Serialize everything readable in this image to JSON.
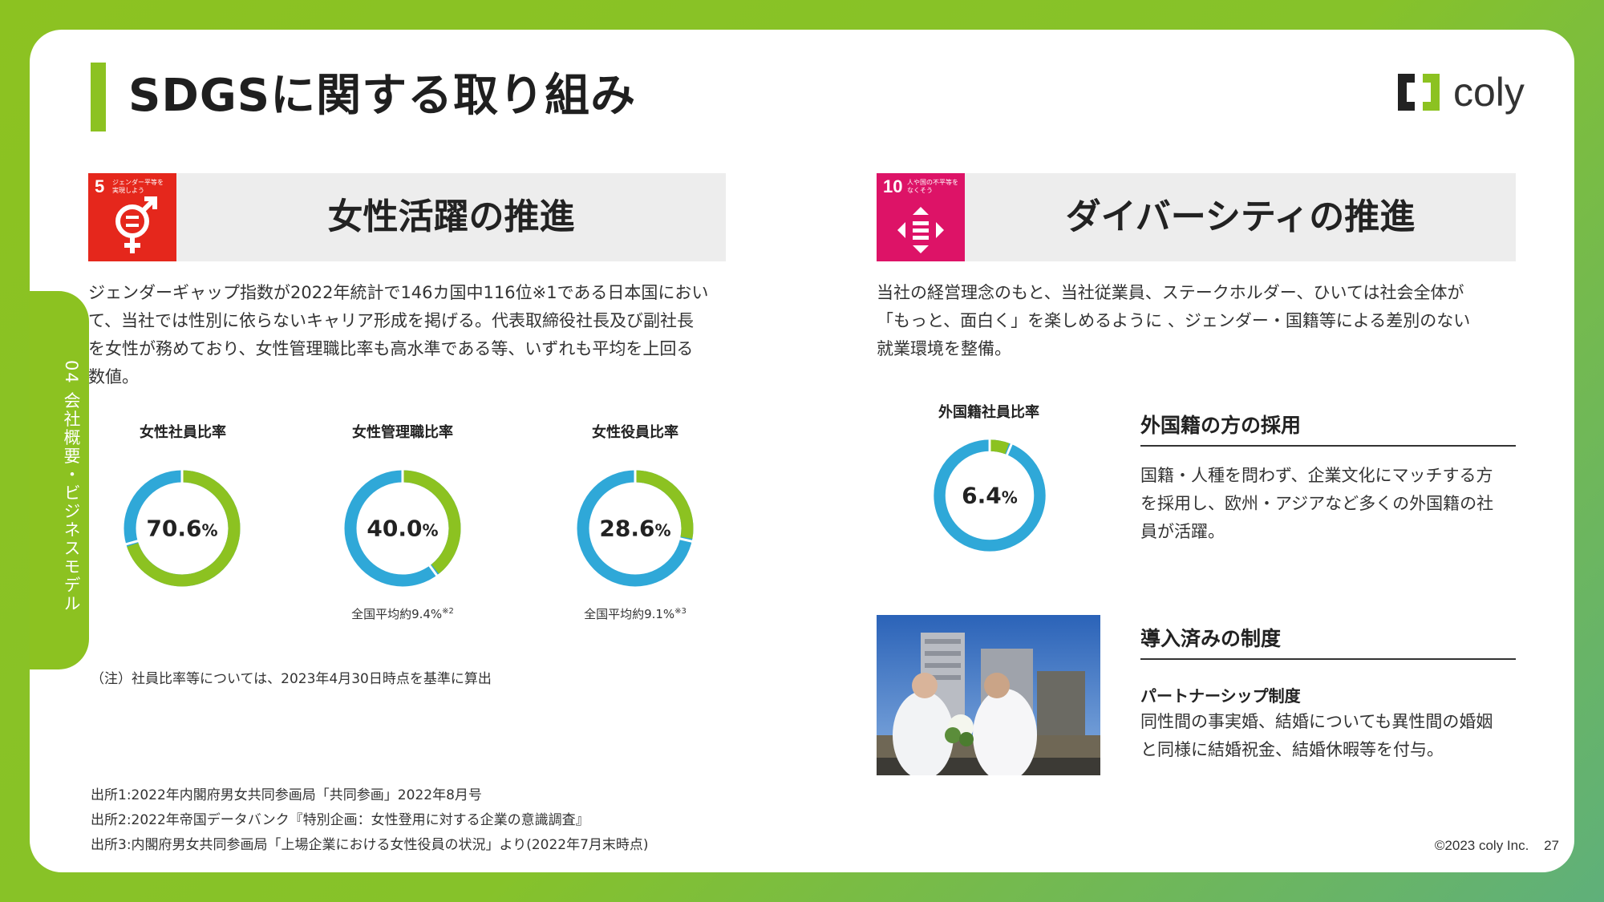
{
  "page": {
    "title": "SDGSに関する取り組み",
    "side_tab": "04 会社概要・ビジネスモデル",
    "logo_text": "coly",
    "footer": "©2023 coly Inc.",
    "page_number": "27"
  },
  "left": {
    "sdg_number": "5",
    "sdg_caption": "ジェンダー平等を実現しよう",
    "sdg_color": "#e5271c",
    "title": "女性活躍の推進",
    "body_lines": [
      "ジェンダーギャップ指数が2022年統計で146カ国中116位※1である日本国におい",
      "て、当社では性別に依らないキャリア形成を掲げる。代表取締役社長及び副社長",
      "を女性が務めており、女性管理職比率も高水準である等、いずれも平均を上回る",
      "数値。"
    ],
    "stats": [
      {
        "label": "女性社員比率",
        "value": "70.6",
        "unit": "%",
        "ratio": 0.706,
        "note": "",
        "note_sup": ""
      },
      {
        "label": "女性管理職比率",
        "value": "40.0",
        "unit": "%",
        "ratio": 0.4,
        "note": "全国平均約9.4%",
        "note_sup": "※2"
      },
      {
        "label": "女性役員比率",
        "value": "28.6",
        "unit": "%",
        "ratio": 0.286,
        "note": "全国平均約9.1%",
        "note_sup": "※3"
      }
    ],
    "footnote": "（注）社員比率等については、2023年4月30日時点を基準に算出",
    "sources": [
      "出所1:2022年内閣府男女共同参画局「共同参画」2022年8月号",
      "出所2:2022年帝国データバンク『特別企画：女性登用に対する企業の意識調査』",
      "出所3:内閣府男女共同参画局「上場企業における女性役員の状況」より(2022年7月末時点)"
    ]
  },
  "right": {
    "sdg_number": "10",
    "sdg_caption": "人や国の不平等をなくそう",
    "sdg_color": "#dd1367",
    "title": "ダイバーシティの推進",
    "body_lines": [
      "当社の経営理念のもと、当社従業員、ステークホルダー、ひいては社会全体が",
      "「もっと、面白く」を楽しめるように 、ジェンダー・国籍等による差別のない",
      "就業環境を整備。"
    ],
    "stat": {
      "label": "外国籍社員比率",
      "value": "6.4",
      "unit": "%",
      "ratio": 0.064
    },
    "hiring": {
      "heading": "外国籍の方の採用",
      "lines": [
        "国籍・人種を問わず、企業文化にマッチする方",
        "を採用し、欧州・アジアなど多くの外国籍の社",
        "員が活躍。"
      ]
    },
    "systems": {
      "heading": "導入済みの制度",
      "subtitle": "パートナーシップ制度",
      "lines": [
        "同性間の事実婚、結婚についても異性間の婚姻",
        "と同様に結婚祝金、結婚休暇等を付与。"
      ]
    }
  },
  "colors": {
    "accent": "#8cc221",
    "ring_blue": "#2fa8d8",
    "ring_green": "#8cc221"
  }
}
